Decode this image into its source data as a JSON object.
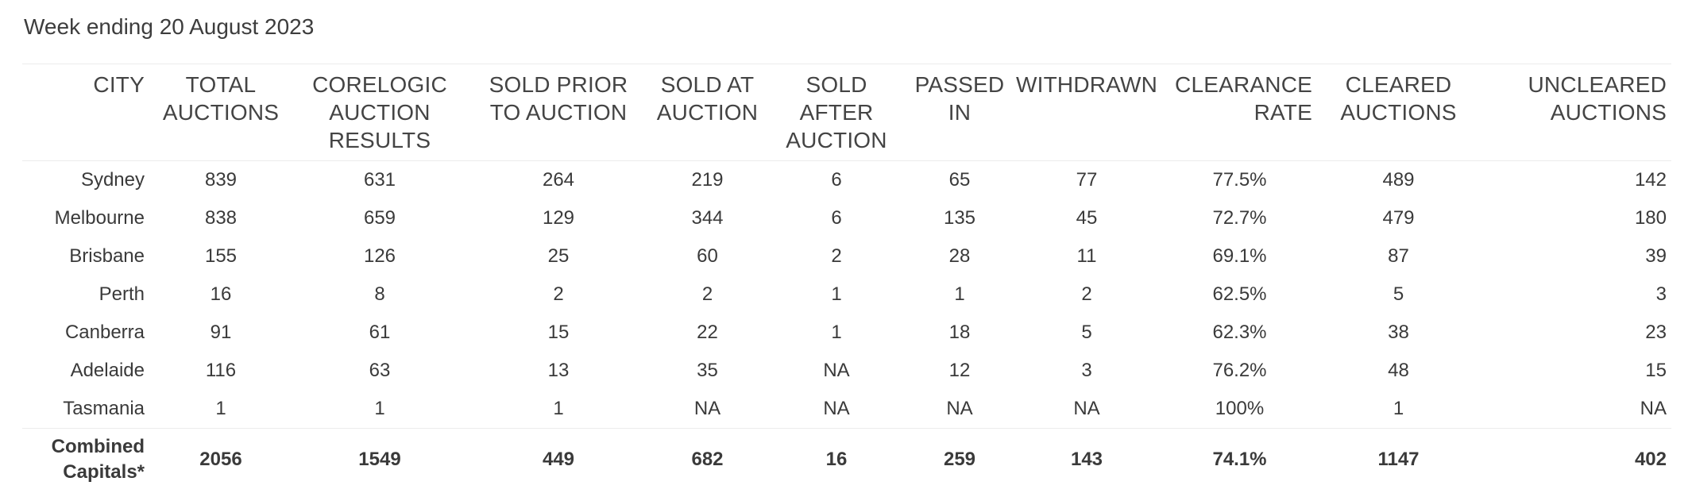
{
  "caption": "Week ending 20 August 2023",
  "headers": {
    "city": "CITY",
    "total_auctions": [
      "TOTAL",
      "AUCTIONS"
    ],
    "corelogic_results": [
      "CORELOGIC",
      "AUCTION",
      "RESULTS"
    ],
    "sold_prior": [
      "SOLD PRIOR",
      "TO AUCTION"
    ],
    "sold_at": [
      "SOLD AT",
      "AUCTION"
    ],
    "sold_after": [
      "SOLD AFTER",
      "AUCTION"
    ],
    "passed_in": [
      "PASSED",
      "IN"
    ],
    "withdrawn": "WITHDRAWN",
    "clearance_rate": [
      "CLEARANCE",
      "RATE"
    ],
    "cleared": [
      "CLEARED",
      "AUCTIONS"
    ],
    "uncleared": [
      "UNCLEARED",
      "AUCTIONS"
    ]
  },
  "rows": [
    {
      "city": "Sydney",
      "total": "839",
      "corelogic": "631",
      "prior": "264",
      "at": "219",
      "after": "6",
      "passed": "65",
      "withdrawn": "77",
      "rate": "77.5%",
      "cleared": "489",
      "uncleared": "142"
    },
    {
      "city": "Melbourne",
      "total": "838",
      "corelogic": "659",
      "prior": "129",
      "at": "344",
      "after": "6",
      "passed": "135",
      "withdrawn": "45",
      "rate": "72.7%",
      "cleared": "479",
      "uncleared": "180"
    },
    {
      "city": "Brisbane",
      "total": "155",
      "corelogic": "126",
      "prior": "25",
      "at": "60",
      "after": "2",
      "passed": "28",
      "withdrawn": "11",
      "rate": "69.1%",
      "cleared": "87",
      "uncleared": "39"
    },
    {
      "city": "Perth",
      "total": "16",
      "corelogic": "8",
      "prior": "2",
      "at": "2",
      "after": "1",
      "passed": "1",
      "withdrawn": "2",
      "rate": "62.5%",
      "cleared": "5",
      "uncleared": "3"
    },
    {
      "city": "Canberra",
      "total": "91",
      "corelogic": "61",
      "prior": "15",
      "at": "22",
      "after": "1",
      "passed": "18",
      "withdrawn": "5",
      "rate": "62.3%",
      "cleared": "38",
      "uncleared": "23"
    },
    {
      "city": "Adelaide",
      "total": "116",
      "corelogic": "63",
      "prior": "13",
      "at": "35",
      "after": "NA",
      "passed": "12",
      "withdrawn": "3",
      "rate": "76.2%",
      "cleared": "48",
      "uncleared": "15"
    },
    {
      "city": "Tasmania",
      "total": "1",
      "corelogic": "1",
      "prior": "1",
      "at": "NA",
      "after": "NA",
      "passed": "NA",
      "withdrawn": "NA",
      "rate": "100%",
      "cleared": "1",
      "uncleared": "NA"
    }
  ],
  "total_row": {
    "city": [
      "Combined",
      "Capitals*"
    ],
    "total": "2056",
    "corelogic": "1549",
    "prior": "449",
    "at": "682",
    "after": "16",
    "passed": "259",
    "withdrawn": "143",
    "rate": "74.1%",
    "cleared": "1147",
    "uncleared": "402"
  }
}
